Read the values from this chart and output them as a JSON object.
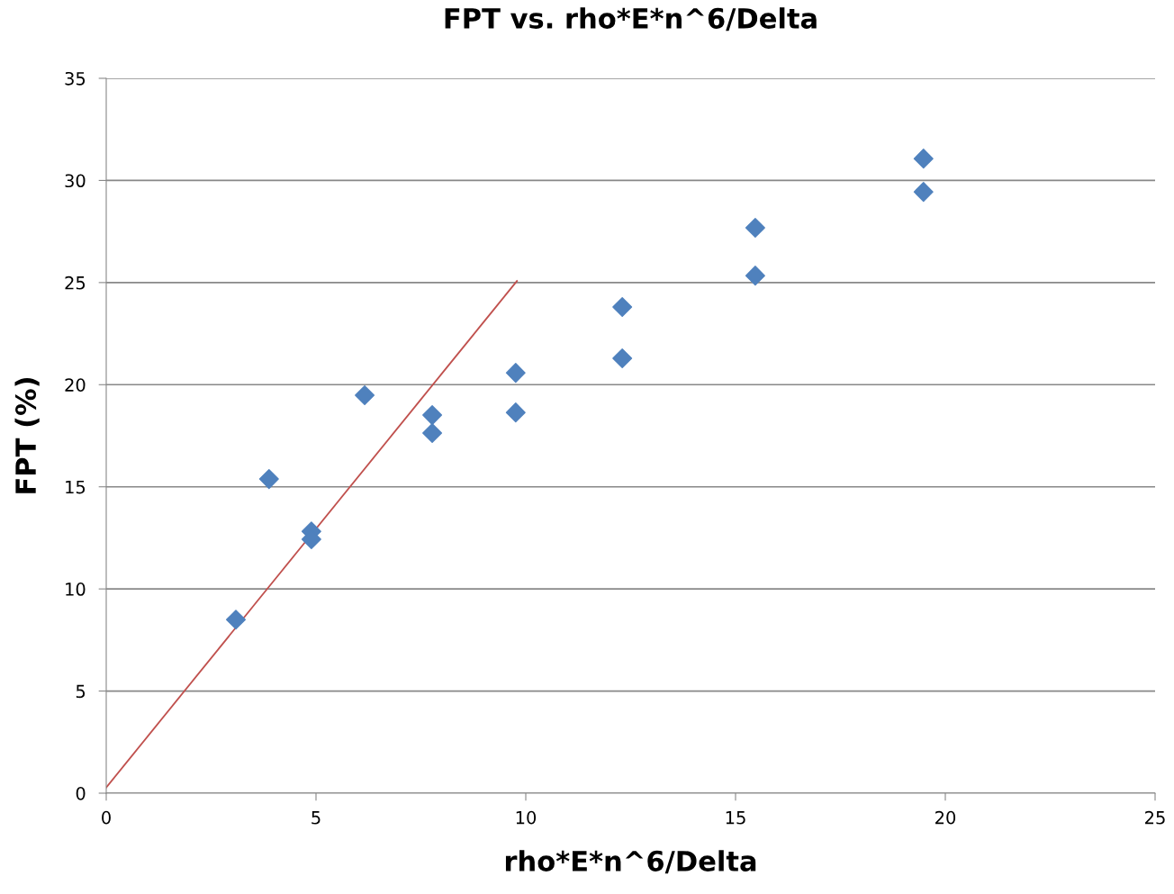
{
  "chart_data": {
    "type": "scatter",
    "title": "FPT vs. rho*E*n^6/Delta",
    "xlabel": "rho*E*n^6/Delta",
    "ylabel": "FPT (%)",
    "xlim": [
      0,
      25
    ],
    "ylim": [
      0,
      35
    ],
    "xticks": [
      0,
      5,
      10,
      15,
      20,
      25
    ],
    "yticks": [
      0,
      5,
      10,
      15,
      20,
      25,
      30,
      35
    ],
    "grid": "y",
    "legend": false,
    "marker": "diamond",
    "series": [
      {
        "color": "#4f81bd",
        "x": [
          3.09,
          3.88,
          4.89,
          4.89,
          6.16,
          7.77,
          7.77,
          9.76,
          9.76,
          12.3,
          12.3,
          15.47,
          15.47,
          19.48,
          19.48
        ],
        "values": [
          8.5,
          15.38,
          12.82,
          12.43,
          19.48,
          18.51,
          17.63,
          20.58,
          18.64,
          23.8,
          21.29,
          27.68,
          25.34,
          31.07,
          29.44
        ]
      },
      {
        "type": "line",
        "color": "#c0504d",
        "marker": "none",
        "x": [
          0,
          9.79
        ],
        "values": [
          0.28,
          25.08
        ]
      }
    ]
  }
}
